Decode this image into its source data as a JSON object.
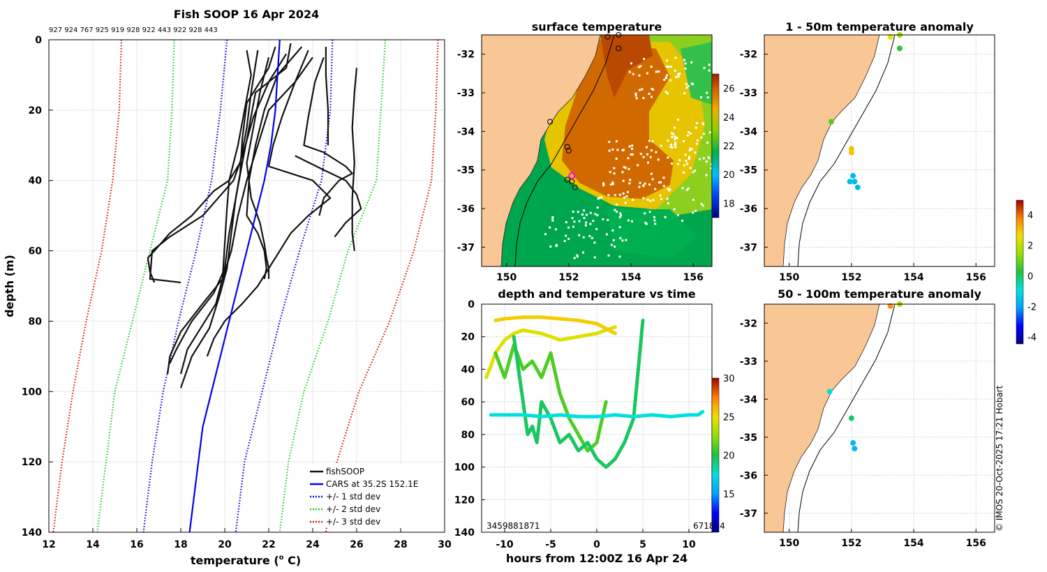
{
  "colors": {
    "land": "#f9c795",
    "fish": "#111111",
    "cars": "#0000ee",
    "std1": "#0000dd",
    "std2": "#22cc22",
    "std3": "#dd1100",
    "highlight": "#ff00ff"
  },
  "copyright": "© IMOS 20-Oct-2025 17:21 Hobart",
  "chart_data": [
    {
      "id": "profile",
      "type": "line",
      "title": "Fish SOOP 16 Apr 2024",
      "subtitle": "927 924 767 925 919 928 922 443 922 928 443",
      "xlabel": "temperature (° C)",
      "xlabel_unit_prefix": "temperature (",
      "xlabel_unit_sup": "o",
      "xlabel_unit_suffix": " C)",
      "ylabel": "depth (m)",
      "xlim": [
        12,
        30
      ],
      "ylim": [
        0,
        140
      ],
      "xticks": [
        12,
        14,
        16,
        18,
        20,
        22,
        24,
        26,
        28,
        30
      ],
      "yticks": [
        0,
        20,
        40,
        60,
        80,
        100,
        120,
        140
      ],
      "legend": [
        {
          "label": "fishSOOP",
          "style": "solid",
          "color": "#111111"
        },
        {
          "label": "CARS at 35.2S 152.1E",
          "style": "solid",
          "color": "#0000ee"
        },
        {
          "label": "+/- 1 std dev",
          "style": "dotted",
          "color": "#0000dd"
        },
        {
          "label": "+/- 2 std dev",
          "style": "dotted",
          "color": "#22cc22"
        },
        {
          "label": "+/- 3 std dev",
          "style": "dotted",
          "color": "#dd1100"
        }
      ],
      "cars_mean": {
        "depth": [
          0,
          10,
          20,
          30,
          40,
          50,
          60,
          70,
          80,
          90,
          100,
          110,
          120,
          130,
          140
        ],
        "temp": [
          22.5,
          22.4,
          22.3,
          22.1,
          21.8,
          21.4,
          21.0,
          20.6,
          20.2,
          19.8,
          19.4,
          19.0,
          18.8,
          18.6,
          18.4
        ]
      },
      "std_curves": [
        {
          "name": "-1",
          "color": "#0000dd",
          "depth": [
            0,
            20,
            40,
            60,
            80,
            100,
            120,
            140
          ],
          "temp": [
            20.1,
            19.8,
            19.4,
            18.7,
            17.9,
            17.2,
            16.7,
            16.3
          ]
        },
        {
          "name": "+1",
          "color": "#0000dd",
          "depth": [
            0,
            20,
            40,
            60,
            80,
            100,
            120,
            140
          ],
          "temp": [
            24.9,
            24.8,
            24.4,
            23.4,
            22.5,
            21.7,
            20.9,
            20.5
          ]
        },
        {
          "name": "-2",
          "color": "#22cc22",
          "depth": [
            0,
            20,
            40,
            60,
            80,
            100,
            120,
            140
          ],
          "temp": [
            17.7,
            17.6,
            17.4,
            16.6,
            15.8,
            15.0,
            14.6,
            14.2
          ]
        },
        {
          "name": "+2",
          "color": "#22cc22",
          "depth": [
            0,
            20,
            40,
            60,
            80,
            100,
            120,
            140
          ],
          "temp": [
            27.3,
            27.1,
            26.9,
            25.6,
            24.7,
            23.6,
            22.9,
            22.5
          ]
        },
        {
          "name": "-3",
          "color": "#dd1100",
          "depth": [
            0,
            20,
            40,
            60,
            80,
            100,
            120,
            140
          ],
          "temp": [
            15.3,
            15.2,
            14.9,
            14.4,
            13.7,
            13.1,
            12.6,
            12.2
          ]
        },
        {
          "name": "+3",
          "color": "#dd1100",
          "depth": [
            0,
            20,
            40,
            60,
            80,
            100,
            120,
            140
          ],
          "temp": [
            29.7,
            29.6,
            29.4,
            28.6,
            27.5,
            26.1,
            25.1,
            24.6
          ]
        }
      ],
      "fish_profiles": [
        {
          "depth": [
            3,
            10,
            20,
            30,
            40,
            48,
            58,
            68,
            75,
            80,
            88,
            95
          ],
          "temp": [
            21.0,
            21.2,
            20.9,
            20.6,
            20.2,
            20.1,
            20.0,
            19.9,
            19.6,
            19.1,
            18.3,
            18.0
          ]
        },
        {
          "depth": [
            2,
            8,
            18,
            28,
            38,
            45,
            55,
            65,
            72,
            82,
            90,
            99
          ],
          "temp": [
            22.3,
            22.0,
            21.0,
            20.8,
            20.7,
            20.5,
            20.3,
            20.1,
            19.8,
            19.3,
            18.5,
            18.0
          ]
        },
        {
          "depth": [
            3,
            15,
            25,
            35,
            40,
            43,
            50,
            55,
            60,
            62,
            66,
            69
          ],
          "temp": [
            21.5,
            21.2,
            21.0,
            20.7,
            20.2,
            19.5,
            18.5,
            17.5,
            16.8,
            16.5,
            16.6,
            16.8
          ]
        },
        {
          "depth": [
            4,
            12,
            22,
            33,
            40,
            50,
            56,
            60,
            68,
            69
          ],
          "temp": [
            22.8,
            22.0,
            21.3,
            20.8,
            20.4,
            19.0,
            17.5,
            16.7,
            16.6,
            18.0
          ]
        },
        {
          "depth": [
            5,
            12,
            20,
            30,
            40,
            50,
            60,
            68,
            75,
            83,
            90,
            95
          ],
          "temp": [
            24.0,
            23.2,
            22.0,
            21.5,
            21.0,
            20.6,
            20.3,
            19.9,
            19.0,
            18.0,
            17.5,
            17.4
          ]
        },
        {
          "depth": [
            1,
            8,
            15,
            25,
            35,
            45,
            55,
            65,
            72,
            80,
            88,
            92
          ],
          "temp": [
            23.0,
            22.8,
            21.4,
            21.1,
            20.8,
            20.5,
            20.2,
            20.0,
            19.5,
            18.5,
            17.8,
            17.5
          ]
        },
        {
          "depth": [
            2,
            10,
            20,
            30,
            40,
            50,
            55,
            60,
            65,
            68
          ],
          "temp": [
            23.5,
            22.4,
            21.8,
            21.4,
            21.1,
            21.0,
            21.5,
            21.8,
            21.9,
            21.8
          ]
        },
        {
          "depth": [
            5,
            15,
            25,
            35,
            45,
            52,
            58,
            62,
            65,
            68
          ],
          "temp": [
            22.0,
            21.6,
            21.3,
            21.0,
            21.2,
            21.6,
            21.8,
            21.9,
            22.0,
            22.0
          ]
        },
        {
          "depth": [
            3,
            12,
            22,
            30,
            36,
            38,
            40,
            45,
            50,
            55,
            60,
            65,
            70,
            75,
            80,
            85,
            90
          ],
          "temp": [
            23.8,
            23.2,
            22.6,
            22.2,
            22.0,
            23.0,
            24.0,
            24.8,
            23.8,
            23.0,
            22.5,
            22.0,
            21.5,
            20.8,
            20.0,
            19.5,
            19.2
          ]
        },
        {
          "depth": [
            5,
            12,
            22,
            30,
            32,
            36,
            38,
            40,
            45,
            50
          ],
          "temp": [
            24.5,
            24.1,
            23.8,
            23.6,
            24.5,
            25.5,
            25.8,
            25.2,
            24.5,
            24.3
          ]
        },
        {
          "depth": [
            33,
            37,
            40,
            44,
            48,
            52,
            56
          ],
          "temp": [
            23.2,
            24.5,
            25.5,
            26.0,
            26.2,
            25.5,
            25.0
          ]
        },
        {
          "depth": [
            2,
            10,
            20,
            30
          ],
          "temp": [
            24.6,
            24.6,
            24.7,
            24.7
          ]
        },
        {
          "depth": [
            8,
            15,
            25,
            35,
            45,
            55,
            60
          ],
          "temp": [
            26.0,
            25.9,
            25.8,
            25.9,
            25.8,
            25.8,
            25.9
          ]
        }
      ]
    },
    {
      "id": "sst",
      "type": "heatmap",
      "title": "surface temperature",
      "xlim": [
        149.2,
        156.6
      ],
      "ylim": [
        -37.5,
        -31.5
      ],
      "xticks": [
        150,
        152,
        154,
        156
      ],
      "yticks": [
        -32,
        -33,
        -34,
        -35,
        -36,
        -37
      ],
      "colorbar": {
        "min": 17,
        "max": 27,
        "ticks": [
          18,
          20,
          22,
          24,
          26
        ]
      },
      "stations": [
        {
          "lon": 153.25,
          "lat": -31.55
        },
        {
          "lon": 153.6,
          "lat": -31.5
        },
        {
          "lon": 153.6,
          "lat": -31.85
        },
        {
          "lon": 151.4,
          "lat": -33.75
        },
        {
          "lon": 151.95,
          "lat": -34.4
        },
        {
          "lon": 152.0,
          "lat": -34.5
        },
        {
          "lon": 151.95,
          "lat": -35.25
        },
        {
          "lon": 152.1,
          "lat": -35.3
        },
        {
          "lon": 152.2,
          "lat": -35.45
        }
      ],
      "highlight_station": {
        "lon": 152.1,
        "lat": -35.15
      }
    },
    {
      "id": "timeseries",
      "type": "scatter",
      "title": "depth and temperature vs time",
      "xlabel": "hours from 12:00Z 16 Apr 24",
      "xlim": [
        -12.5,
        12.5
      ],
      "ylim": [
        0,
        140
      ],
      "xticks": [
        -10,
        -5,
        0,
        5,
        10
      ],
      "yticks": [
        0,
        20,
        40,
        60,
        80,
        100,
        120,
        140
      ],
      "colorbar": {
        "min": 10,
        "max": 30,
        "ticks": [
          15,
          20,
          25,
          30
        ]
      },
      "left_annotation": "3459881871",
      "right_annotation": "671894",
      "tracks": [
        {
          "temp": 24.5,
          "hours": [
            -12,
            -11.5,
            -11,
            -10,
            -9,
            -8,
            -6,
            -4,
            -2,
            0,
            2
          ],
          "depth": [
            45,
            38,
            30,
            22,
            18,
            16,
            18,
            22,
            20,
            18,
            14
          ]
        },
        {
          "temp": 25.5,
          "hours": [
            -11,
            -10,
            -8,
            -6,
            -4,
            -2,
            0,
            1,
            2
          ],
          "depth": [
            10,
            9,
            8,
            8,
            9,
            10,
            12,
            15,
            18
          ]
        },
        {
          "temp": 21.0,
          "hours": [
            -11,
            -10,
            -9,
            -8,
            -7,
            -6,
            -5,
            -4,
            -3,
            -2,
            -1,
            0,
            1
          ],
          "depth": [
            30,
            45,
            25,
            40,
            35,
            45,
            30,
            55,
            70,
            80,
            90,
            85,
            60
          ]
        },
        {
          "temp": 19.5,
          "hours": [
            -9,
            -8,
            -7.5,
            -7,
            -6.5,
            -6,
            -5,
            -4,
            -3,
            -2,
            -1,
            0,
            1,
            2,
            3,
            4,
            5
          ],
          "depth": [
            20,
            60,
            80,
            75,
            85,
            60,
            70,
            85,
            80,
            90,
            85,
            95,
            100,
            95,
            85,
            70,
            10
          ]
        },
        {
          "temp": 17.5,
          "hours": [
            -11.5,
            -10,
            -8,
            -6,
            -4,
            -2,
            0,
            2,
            4,
            6,
            8,
            10,
            11,
            11.5
          ],
          "depth": [
            68,
            68,
            68,
            69,
            68,
            69,
            69,
            68,
            69,
            68,
            69,
            68,
            68,
            66
          ]
        }
      ]
    },
    {
      "id": "anom1",
      "type": "scatter",
      "title": "1 - 50m temperature anomaly",
      "xlim": [
        149.2,
        156.6
      ],
      "ylim": [
        -37.5,
        -31.5
      ],
      "xticks": [
        150,
        152,
        154,
        156
      ],
      "yticks": [
        -32,
        -33,
        -34,
        -35,
        -36,
        -37
      ],
      "points": [
        {
          "lon": 153.25,
          "lat": -31.55,
          "anom": 2.6
        },
        {
          "lon": 153.55,
          "lat": -31.5,
          "anom": 1.6
        },
        {
          "lon": 153.55,
          "lat": -31.85,
          "anom": 0.4
        },
        {
          "lon": 151.35,
          "lat": -33.75,
          "anom": 0.8
        },
        {
          "lon": 152.0,
          "lat": -34.45,
          "anom": 3.0
        },
        {
          "lon": 152.0,
          "lat": -34.55,
          "anom": 3.0
        },
        {
          "lon": 152.05,
          "lat": -35.15,
          "anom": -1.6
        },
        {
          "lon": 151.95,
          "lat": -35.3,
          "anom": -1.6
        },
        {
          "lon": 152.1,
          "lat": -35.3,
          "anom": -1.6
        },
        {
          "lon": 152.2,
          "lat": -35.45,
          "anom": -1.6
        }
      ]
    },
    {
      "id": "anom2",
      "type": "scatter",
      "title": "50 - 100m temperature anomaly",
      "xlim": [
        149.2,
        156.6
      ],
      "ylim": [
        -37.5,
        -31.5
      ],
      "xticks": [
        150,
        152,
        154,
        156
      ],
      "yticks": [
        -32,
        -33,
        -34,
        -35,
        -36,
        -37
      ],
      "colorbar": {
        "min": -4,
        "max": 5,
        "ticks": [
          4,
          2,
          0,
          -2,
          -4
        ]
      },
      "points": [
        {
          "lon": 153.25,
          "lat": -31.55,
          "anom": 3.6
        },
        {
          "lon": 153.55,
          "lat": -31.5,
          "anom": 1.6
        },
        {
          "lon": 151.3,
          "lat": -33.8,
          "anom": -0.8
        },
        {
          "lon": 152.0,
          "lat": -34.5,
          "anom": 0.0
        },
        {
          "lon": 152.05,
          "lat": -35.15,
          "anom": -1.6
        },
        {
          "lon": 152.1,
          "lat": -35.3,
          "anom": -1.6
        }
      ]
    }
  ]
}
